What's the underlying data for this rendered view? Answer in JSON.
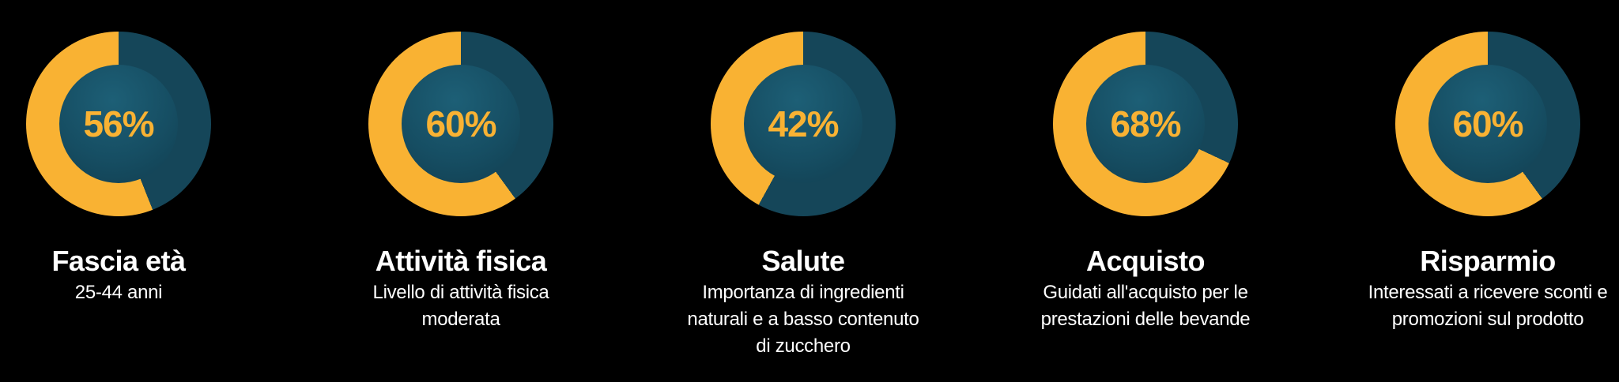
{
  "background_color": "#000000",
  "colors": {
    "accent_yellow": "#F9B233",
    "ring_remainder_teal": "#154659",
    "inner_disk_light": "#1D5F76",
    "inner_disk_mid": "#164E63",
    "inner_disk_dark": "#113E50",
    "text_white": "#FFFFFF"
  },
  "chart_data": [
    {
      "type": "pie",
      "style": "donut",
      "percent": 56,
      "value_label": "56%",
      "title": "Fascia età",
      "subtitle_lines": [
        "25-44 anni"
      ],
      "filled_color": "#F9B233",
      "remainder_color": "#154659",
      "start": "12 o'clock",
      "direction": "counterclockwise",
      "legend": "none"
    },
    {
      "type": "pie",
      "style": "donut",
      "percent": 60,
      "value_label": "60%",
      "title": "Attività fisica",
      "subtitle_lines": [
        "Livello di attività fisica",
        "moderata"
      ],
      "filled_color": "#F9B233",
      "remainder_color": "#154659",
      "start": "12 o'clock",
      "direction": "counterclockwise",
      "legend": "none"
    },
    {
      "type": "pie",
      "style": "donut",
      "percent": 42,
      "value_label": "42%",
      "title": "Salute",
      "subtitle_lines": [
        "Importanza di ingredienti",
        "naturali e a basso contenuto",
        "di zucchero"
      ],
      "filled_color": "#F9B233",
      "remainder_color": "#154659",
      "start": "12 o'clock",
      "direction": "counterclockwise",
      "legend": "none"
    },
    {
      "type": "pie",
      "style": "donut",
      "percent": 68,
      "value_label": "68%",
      "title": "Acquisto",
      "subtitle_lines": [
        "Guidati all'acquisto per le",
        "prestazioni delle bevande"
      ],
      "filled_color": "#F9B233",
      "remainder_color": "#154659",
      "start": "12 o'clock",
      "direction": "counterclockwise",
      "legend": "none"
    },
    {
      "type": "pie",
      "style": "donut",
      "percent": 60,
      "value_label": "60%",
      "title": "Risparmio",
      "subtitle_lines": [
        "Interessati a ricevere sconti e",
        "promozioni sul prodotto"
      ],
      "filled_color": "#F9B233",
      "remainder_color": "#154659",
      "start": "12 o'clock",
      "direction": "counterclockwise",
      "legend": "none"
    }
  ]
}
